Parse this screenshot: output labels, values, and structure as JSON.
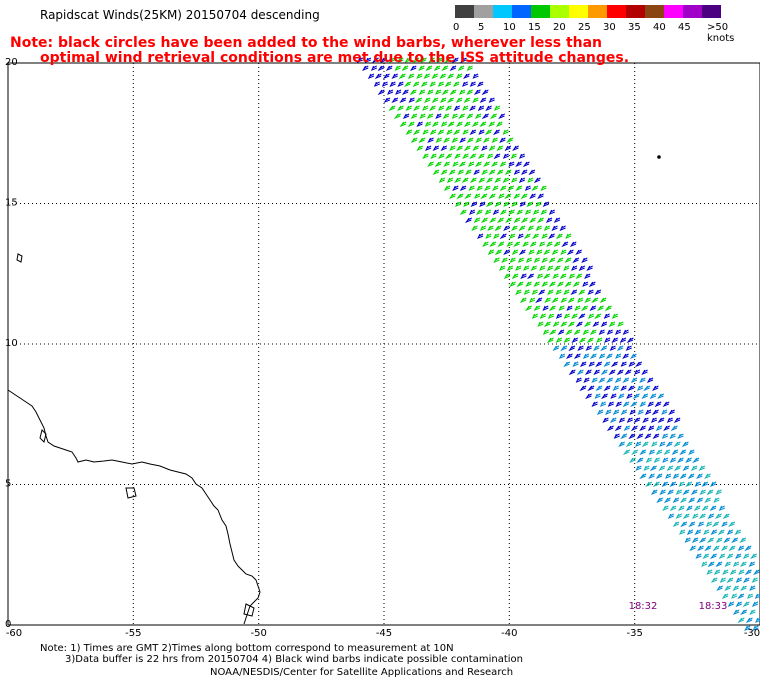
{
  "title": "Rapidscat Winds(25KM) 20150704 descending",
  "note": {
    "line1": "Note: black circles have been added to the wind barbs, wherever less than",
    "line2": "optimal wind retrieval conditions are met due to the ISS attitude changes."
  },
  "legend": {
    "unit": ">50 knots",
    "labels": [
      "0",
      "5",
      "10",
      "15",
      "20",
      "25",
      "30",
      "35",
      "40",
      "45"
    ],
    "colors": [
      "#404040",
      "#a0a0a0",
      "#00c8ff",
      "#0064ff",
      "#00c800",
      "#aaff00",
      "#ffff00",
      "#ff9900",
      "#ff0000",
      "#b30000",
      "#8b4513",
      "#ff00ff",
      "#a000c8",
      "#4b0082"
    ]
  },
  "axes": {
    "lon_labels": [
      "-60",
      "-55",
      "-50",
      "-45",
      "-40",
      "-35",
      "-30"
    ],
    "lat_labels": [
      "0",
      "5",
      "10",
      "15",
      "20"
    ],
    "lon_range": [
      -60,
      -30
    ],
    "lat_range": [
      0,
      20
    ]
  },
  "time_labels": [
    "18:32",
    "18:33"
  ],
  "barb_colors": [
    "#00d400",
    "#0000c8",
    "#008ad2",
    "#18b4b4"
  ],
  "footnotes": {
    "line1": "Note: 1) Times are GMT  2)Times along bottom correspond to measurement at 10N",
    "line2": "3)Data buffer is 22 hrs from 20150704  4) Black wind barbs indicate possible contamination",
    "credit": "NOAA/NESDIS/Center for Satellite Applications and Research"
  }
}
